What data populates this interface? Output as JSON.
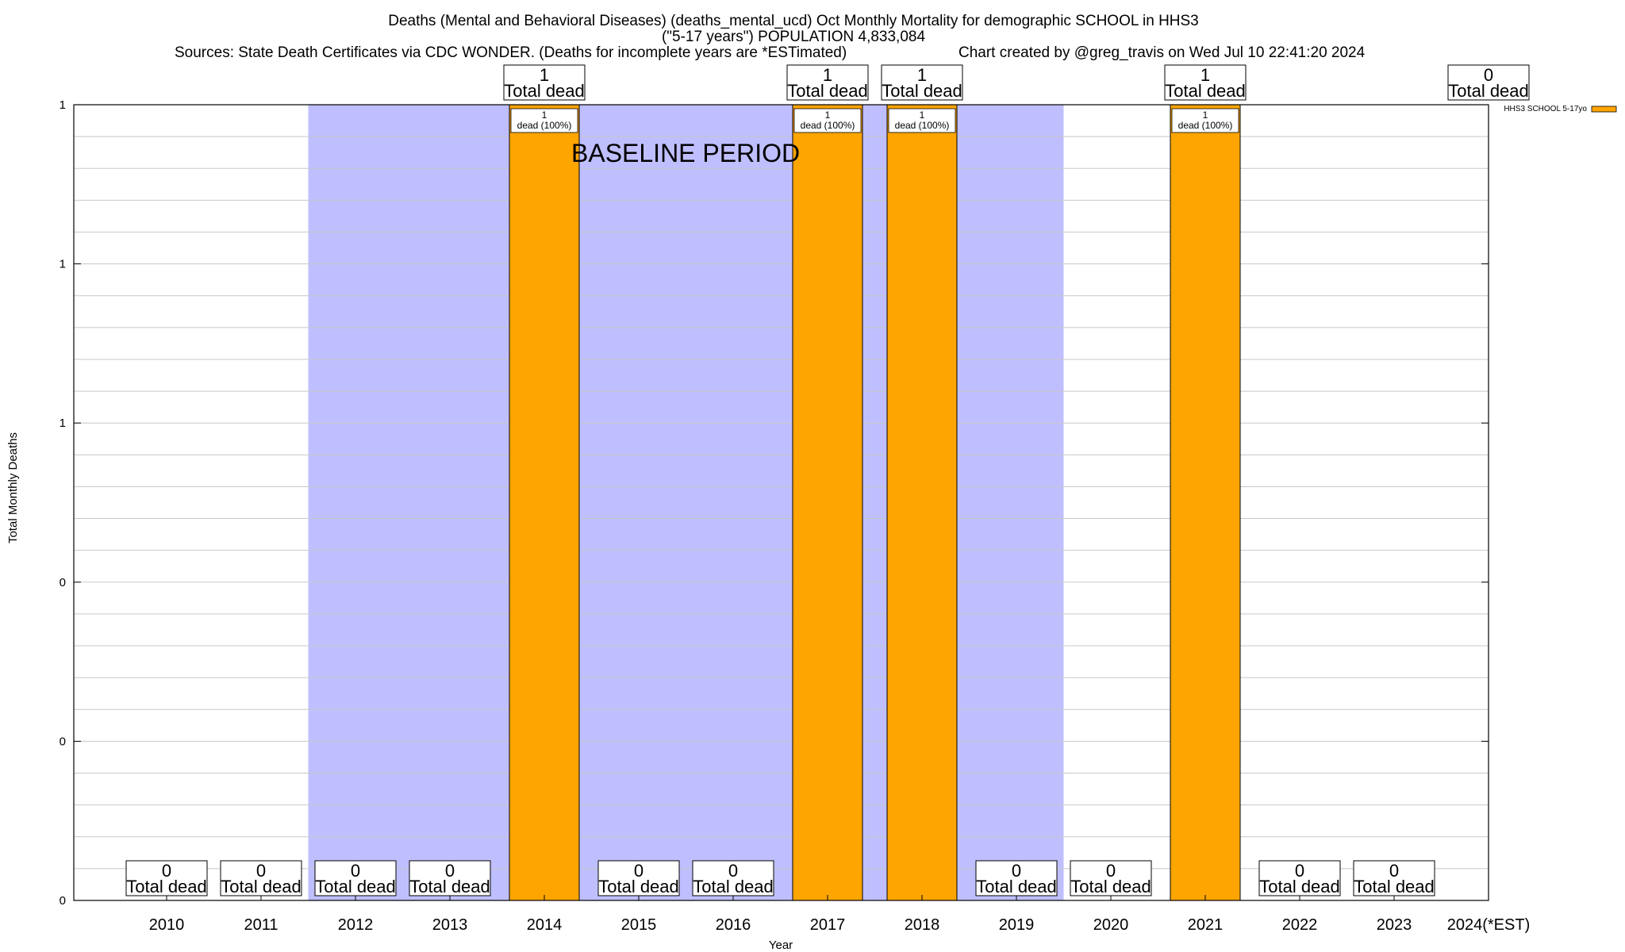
{
  "chart_data": {
    "type": "bar",
    "title_lines": [
      "Deaths (Mental and Behavioral Diseases) (deaths_mental_ucd) Oct Monthly Mortality for demographic SCHOOL in HHS3",
      "(\"5-17 years\") POPULATION 4,833,084",
      "Sources: State Death Certificates via CDC WONDER. (Deaths for incomplete years are *ESTimated)",
      "Chart created by @greg_travis on Wed Jul 10 22:41:20 2024"
    ],
    "xlabel": "Year",
    "ylabel": "Total Monthly Deaths",
    "categories": [
      "2010",
      "2011",
      "2012",
      "2013",
      "2014",
      "2015",
      "2016",
      "2017",
      "2018",
      "2019",
      "2020",
      "2021",
      "2022",
      "2023",
      "2024(*EST)"
    ],
    "series": [
      {
        "name": "HHS3 SCHOOL 5-17yo",
        "color": "#ffa500",
        "values": [
          0,
          0,
          0,
          0,
          1,
          0,
          0,
          1,
          1,
          0,
          0,
          1,
          0,
          0,
          0
        ]
      }
    ],
    "ylim": [
      0,
      1
    ],
    "y_ticks": [
      {
        "value": 0,
        "label": "0"
      },
      {
        "value": 0.2,
        "label": "0"
      },
      {
        "value": 0.4,
        "label": "0"
      },
      {
        "value": 0.6,
        "label": "1"
      },
      {
        "value": 0.8,
        "label": "1"
      },
      {
        "value": 1.0,
        "label": "1"
      }
    ],
    "total_label_text": "Total dead",
    "bar_label_line2": "dead (100%)",
    "baseline": {
      "label": "BASELINE PERIOD",
      "start": "2012",
      "end": "2019",
      "color": "#bfbfff"
    },
    "grid": true,
    "legend_position": "top-right"
  }
}
